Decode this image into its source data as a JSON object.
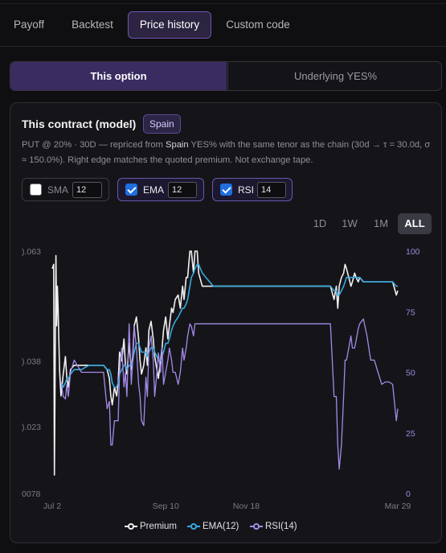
{
  "tabs": [
    {
      "label": "Payoff",
      "active": false
    },
    {
      "label": "Backtest",
      "active": false
    },
    {
      "label": "Price history",
      "active": true
    },
    {
      "label": "Custom code",
      "active": false
    }
  ],
  "segment": {
    "this_option": "This option",
    "underlying": "Underlying YES%"
  },
  "card": {
    "title": "This contract (model)",
    "chip": "Spain",
    "desc_pre": "PUT @ 20% · 30D — repriced from ",
    "desc_bold": "Spain",
    "desc_post": " YES% with the same tenor as the chain (30d → τ = 30.0d, σ ≈ 150.0%). Right edge matches the quoted premium. Not exchange tape."
  },
  "indicators": [
    {
      "label": "SMA",
      "value": "12",
      "checked": false
    },
    {
      "label": "EMA",
      "value": "12",
      "checked": true
    },
    {
      "label": "RSI",
      "value": "14",
      "checked": true
    }
  ],
  "ranges": [
    "1D",
    "1W",
    "1M",
    "ALL"
  ],
  "active_range": "ALL",
  "colors": {
    "accent": "#6d55b0",
    "premium": "#f0f0f2",
    "ema": "#35a9e0",
    "rsi": "#a48ae8",
    "checkbox": "#1f6fe0"
  },
  "chart_data": {
    "type": "line",
    "x_ticks": [
      "Jul 2",
      "Sep 10",
      "Nov 18",
      "Mar 29"
    ],
    "y_left_ticks": [
      ").063",
      ").038",
      ").023",
      "0078"
    ],
    "y_right_ticks": [
      "100",
      "75",
      "50",
      "25",
      "0"
    ],
    "y_right_lim": [
      0,
      100
    ],
    "legend_position": "bottom-center",
    "series": [
      {
        "name": "Premium",
        "axis": "left",
        "color": "#f0f0f2",
        "x": [
          0,
          2,
          3,
          5,
          6,
          7,
          8,
          10,
          12,
          15,
          18,
          20,
          22,
          25,
          30,
          40,
          50,
          60,
          70,
          75,
          78,
          80,
          82,
          85,
          88,
          90,
          92,
          95,
          98,
          100,
          102,
          105,
          108,
          110,
          112,
          115,
          118,
          120,
          122,
          125,
          128,
          130,
          132,
          135,
          138,
          140,
          143,
          145,
          148,
          150,
          152,
          155,
          158,
          160,
          163,
          165,
          168,
          172,
          175,
          178,
          180,
          183,
          185,
          188,
          190,
          193,
          195,
          198,
          200,
          205,
          210,
          215,
          220,
          225,
          230,
          235,
          240,
          245,
          250,
          260,
          270,
          280,
          290,
          300,
          310,
          320,
          330,
          340,
          350,
          360,
          370,
          380,
          385,
          388,
          390,
          392,
          395,
          398,
          400,
          402,
          405,
          408,
          410,
          413,
          415,
          418,
          420,
          425,
          430,
          435,
          440,
          445,
          450,
          455,
          460,
          465,
          470,
          472
        ],
        "y": [
          0.059,
          0.06,
          0.012,
          0.062,
          0.046,
          0.055,
          0.05,
          0.036,
          0.03,
          0.035,
          0.039,
          0.034,
          0.032,
          0.036,
          0.037,
          0.037,
          0.037,
          0.037,
          0.037,
          0.036,
          0.034,
          0.03,
          0.028,
          0.032,
          0.03,
          0.033,
          0.04,
          0.038,
          0.043,
          0.037,
          0.035,
          0.042,
          0.036,
          0.039,
          0.046,
          0.048,
          0.043,
          0.038,
          0.035,
          0.037,
          0.041,
          0.037,
          0.045,
          0.047,
          0.043,
          0.039,
          0.036,
          0.034,
          0.038,
          0.041,
          0.045,
          0.048,
          0.043,
          0.046,
          0.05,
          0.049,
          0.052,
          0.053,
          0.05,
          0.055,
          0.052,
          0.057,
          0.057,
          0.063,
          0.063,
          0.058,
          0.063,
          0.063,
          0.058,
          0.055,
          0.055,
          0.055,
          0.055,
          0.055,
          0.055,
          0.055,
          0.055,
          0.055,
          0.055,
          0.055,
          0.055,
          0.055,
          0.055,
          0.055,
          0.055,
          0.055,
          0.055,
          0.055,
          0.055,
          0.055,
          0.055,
          0.055,
          0.052,
          0.055,
          0.05,
          0.055,
          0.057,
          0.058,
          0.06,
          0.059,
          0.057,
          0.055,
          0.056,
          0.058,
          0.057,
          0.056,
          0.057,
          0.056,
          0.056,
          0.056,
          0.056,
          0.056,
          0.056,
          0.056,
          0.056,
          0.056,
          0.053,
          0.054
        ]
      },
      {
        "name": "EMA(12)",
        "axis": "left",
        "color": "#35a9e0",
        "x": [
          12,
          15,
          18,
          20,
          22,
          25,
          30,
          40,
          50,
          60,
          70,
          75,
          78,
          80,
          82,
          85,
          88,
          90,
          92,
          95,
          98,
          100,
          102,
          105,
          108,
          110,
          112,
          115,
          118,
          120,
          122,
          125,
          128,
          130,
          132,
          135,
          138,
          140,
          143,
          145,
          148,
          150,
          152,
          155,
          158,
          160,
          163,
          165,
          168,
          172,
          175,
          178,
          180,
          183,
          185,
          188,
          190,
          193,
          195,
          198,
          200,
          205,
          210,
          215,
          220,
          225,
          230,
          235,
          240,
          245,
          250,
          260,
          270,
          280,
          290,
          300,
          310,
          320,
          330,
          340,
          350,
          360,
          370,
          380,
          385,
          388,
          390,
          392,
          395,
          398,
          400,
          402,
          405,
          408,
          410,
          413,
          415,
          418,
          420,
          425,
          430,
          435,
          440,
          445,
          450,
          455,
          460,
          465,
          470,
          472
        ],
        "y": [
          0.033,
          0.032,
          0.033,
          0.034,
          0.034,
          0.035,
          0.036,
          0.036,
          0.037,
          0.037,
          0.037,
          0.036,
          0.036,
          0.035,
          0.033,
          0.032,
          0.032,
          0.033,
          0.035,
          0.036,
          0.037,
          0.037,
          0.036,
          0.037,
          0.037,
          0.038,
          0.04,
          0.042,
          0.042,
          0.041,
          0.04,
          0.04,
          0.04,
          0.039,
          0.04,
          0.041,
          0.041,
          0.04,
          0.039,
          0.038,
          0.038,
          0.039,
          0.04,
          0.042,
          0.042,
          0.043,
          0.045,
          0.046,
          0.047,
          0.048,
          0.049,
          0.05,
          0.05,
          0.051,
          0.052,
          0.055,
          0.057,
          0.058,
          0.059,
          0.06,
          0.06,
          0.058,
          0.057,
          0.056,
          0.055,
          0.055,
          0.055,
          0.055,
          0.055,
          0.055,
          0.055,
          0.055,
          0.055,
          0.055,
          0.055,
          0.055,
          0.055,
          0.055,
          0.055,
          0.055,
          0.055,
          0.055,
          0.055,
          0.055,
          0.054,
          0.054,
          0.053,
          0.053,
          0.054,
          0.055,
          0.056,
          0.057,
          0.057,
          0.057,
          0.057,
          0.057,
          0.057,
          0.057,
          0.057,
          0.056,
          0.056,
          0.056,
          0.056,
          0.056,
          0.056,
          0.056,
          0.056,
          0.056,
          0.055,
          0.055
        ]
      },
      {
        "name": "RSI(14)",
        "axis": "right",
        "color": "#a48ae8",
        "x": [
          12,
          15,
          18,
          20,
          22,
          25,
          30,
          40,
          50,
          60,
          70,
          75,
          78,
          80,
          82,
          85,
          88,
          90,
          92,
          95,
          98,
          100,
          102,
          105,
          108,
          110,
          112,
          115,
          118,
          120,
          122,
          125,
          128,
          130,
          132,
          135,
          138,
          140,
          143,
          145,
          148,
          150,
          152,
          155,
          158,
          160,
          163,
          165,
          168,
          172,
          175,
          178,
          180,
          183,
          185,
          188,
          190,
          193,
          195,
          198,
          200,
          205,
          210,
          215,
          220,
          225,
          230,
          235,
          240,
          245,
          250,
          260,
          270,
          280,
          290,
          300,
          310,
          320,
          330,
          340,
          350,
          360,
          370,
          380,
          385,
          388,
          390,
          392,
          395,
          398,
          400,
          402,
          405,
          408,
          410,
          413,
          415,
          418,
          420,
          425,
          430,
          435,
          440,
          445,
          450,
          455,
          460,
          465,
          470,
          472
        ],
        "y": [
          46,
          40,
          39,
          45,
          40,
          50,
          55,
          50,
          50,
          50,
          50,
          35,
          38,
          20,
          20,
          30,
          30,
          30,
          50,
          60,
          44,
          50,
          40,
          70,
          45,
          55,
          69,
          60,
          45,
          40,
          30,
          28,
          48,
          40,
          60,
          65,
          55,
          40,
          50,
          58,
          50,
          60,
          45,
          50,
          55,
          60,
          55,
          50,
          50,
          45,
          50,
          60,
          55,
          60,
          65,
          70,
          69,
          65,
          70,
          70,
          70,
          70,
          70,
          70,
          70,
          70,
          70,
          70,
          70,
          70,
          70,
          70,
          70,
          70,
          70,
          70,
          70,
          70,
          70,
          70,
          70,
          70,
          70,
          70,
          40,
          40,
          20,
          10,
          20,
          40,
          55,
          55,
          60,
          65,
          60,
          60,
          63,
          68,
          70,
          72,
          65,
          55,
          55,
          50,
          45,
          46,
          46,
          45,
          30,
          35
        ]
      }
    ]
  },
  "legend": [
    "Premium",
    "EMA(12)",
    "RSI(14)"
  ]
}
